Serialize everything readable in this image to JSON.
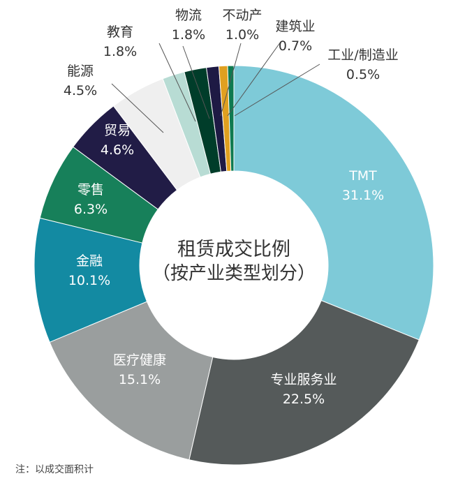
{
  "chart_data": {
    "type": "pie",
    "donut": true,
    "title": "租赁成交比例",
    "subtitle": "（按产业类型划分）",
    "start": "top",
    "direction": "clockwise",
    "slices": [
      {
        "label": "TMT",
        "value": 31.1,
        "display": "31.1%",
        "color": "#7ecad8"
      },
      {
        "label": "专业服务业",
        "value": 22.5,
        "display": "22.5%",
        "color": "#555a5a"
      },
      {
        "label": "医疗健康",
        "value": 15.1,
        "display": "15.1%",
        "color": "#9a9e9e"
      },
      {
        "label": "金融",
        "value": 10.1,
        "display": "10.1%",
        "color": "#138aa2"
      },
      {
        "label": "零售",
        "value": 6.3,
        "display": "6.3%",
        "color": "#17805a"
      },
      {
        "label": "贸易",
        "value": 4.6,
        "display": "4.6%",
        "color": "#211c46"
      },
      {
        "label": "能源",
        "value": 4.5,
        "display": "4.5%",
        "color": "#efefef"
      },
      {
        "label": "教育",
        "value": 1.8,
        "display": "1.8%",
        "color": "#b8dcd4"
      },
      {
        "label": "物流",
        "value": 1.8,
        "display": "1.8%",
        "color": "#003d2a"
      },
      {
        "label": "不动产",
        "value": 1.0,
        "display": "1.0%",
        "color": "#1e1a44"
      },
      {
        "label": "建筑业",
        "value": 0.7,
        "display": "0.7%",
        "color": "#e0a020"
      },
      {
        "label": "工业/制造业",
        "value": 0.5,
        "display": "0.5%",
        "color": "#0f7a50"
      }
    ]
  },
  "note": "注：以成交面积计"
}
